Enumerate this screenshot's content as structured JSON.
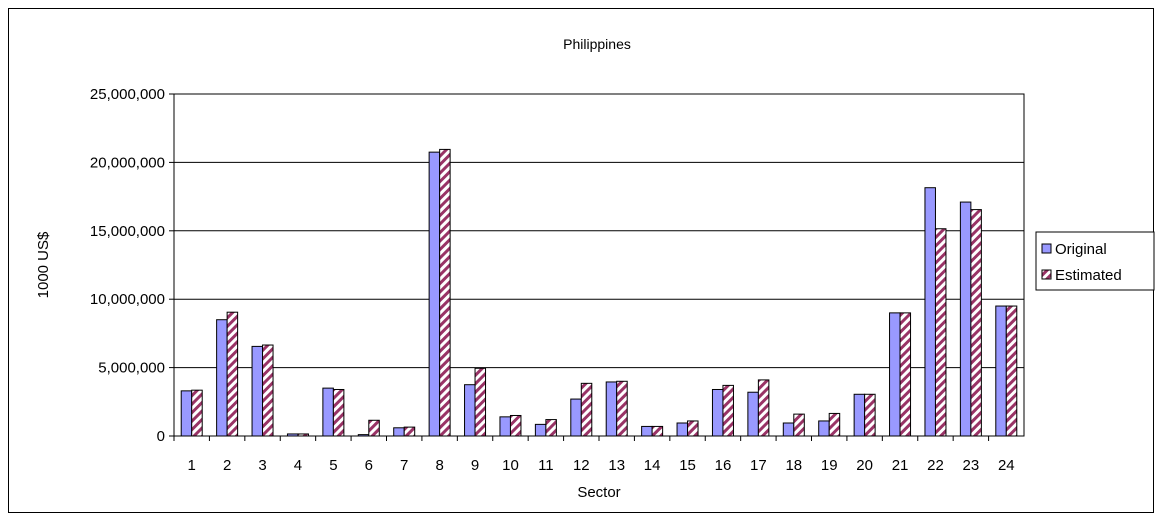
{
  "chart_data": {
    "type": "bar",
    "title": "Philippines",
    "xlabel": "Sector",
    "ylabel": "1000 US$",
    "ylim": [
      0,
      25000000
    ],
    "yticks": [
      "0",
      "5,000,000",
      "10,000,000",
      "15,000,000",
      "20,000,000",
      "25,000,000"
    ],
    "grid": true,
    "legend_position": "right",
    "categories": [
      "1",
      "2",
      "3",
      "4",
      "5",
      "6",
      "7",
      "8",
      "9",
      "10",
      "11",
      "12",
      "13",
      "14",
      "15",
      "16",
      "17",
      "18",
      "19",
      "20",
      "21",
      "22",
      "23",
      "24"
    ],
    "series": [
      {
        "name": "Original",
        "color": "#9999ff",
        "values": [
          3300000,
          8500000,
          6550000,
          150000,
          3500000,
          100000,
          600000,
          20750000,
          3750000,
          1400000,
          850000,
          2700000,
          3950000,
          700000,
          950000,
          3400000,
          3200000,
          950000,
          1100000,
          3050000,
          9000000,
          18150000,
          17100000,
          9500000
        ]
      },
      {
        "name": "Estimated",
        "color": "#993366",
        "pattern": "diagonal-stripes",
        "values": [
          3350000,
          9050000,
          6650000,
          150000,
          3400000,
          1150000,
          650000,
          20950000,
          4950000,
          1500000,
          1200000,
          3850000,
          4000000,
          700000,
          1100000,
          3700000,
          4100000,
          1600000,
          1650000,
          3050000,
          9000000,
          15150000,
          16550000,
          9500000
        ]
      }
    ]
  }
}
